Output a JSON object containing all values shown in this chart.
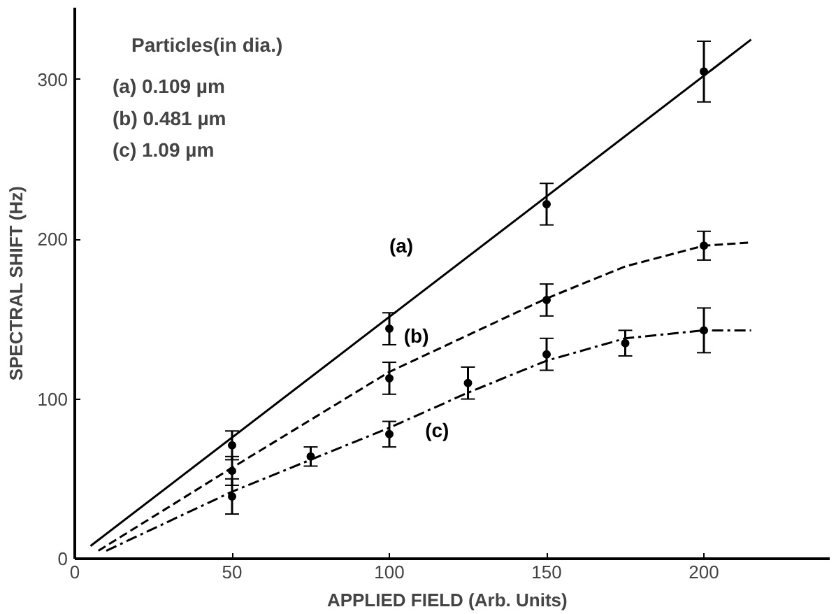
{
  "chart_data": {
    "type": "scatter",
    "xlabel": "APPLIED  FIELD  (Arb. Units)",
    "ylabel": "SPECTRAL SHIFT (Hz)",
    "xlim": [
      0,
      240
    ],
    "ylim": [
      0,
      345
    ],
    "xticks": [
      0,
      50,
      100,
      150,
      200
    ],
    "yticks": [
      0,
      100,
      200,
      300
    ],
    "grid": false,
    "marker": "circle",
    "series": [
      {
        "color": "#000000",
        "x": [
          50,
          100,
          150,
          200
        ],
        "values": [
          71,
          144,
          222,
          305
        ],
        "errors": [
          9,
          10,
          13,
          19
        ]
      },
      {
        "color": "#000000",
        "x": [
          50,
          100,
          150,
          200
        ],
        "values": [
          55,
          113,
          162,
          196
        ],
        "errors": [
          9,
          10,
          10,
          9
        ]
      },
      {
        "color": "#000000",
        "x": [
          50,
          75,
          100,
          125,
          150,
          175,
          200
        ],
        "values": [
          39,
          64,
          78,
          110,
          128,
          135,
          143
        ],
        "errors": [
          11,
          6,
          8,
          10,
          10,
          8,
          14
        ]
      },
      {
        "type": "line",
        "name": "(a)",
        "color": "#000000",
        "line_style": "solid",
        "marker": "none",
        "x": [
          5,
          215
        ],
        "values": [
          8,
          325
        ]
      },
      {
        "type": "line",
        "name": "(b)",
        "color": "#000000",
        "line_style": "dashed",
        "marker": "none",
        "x": [
          7.5,
          50,
          100,
          150,
          175,
          200,
          215
        ],
        "values": [
          5,
          57,
          117,
          163,
          183,
          196,
          198
        ]
      },
      {
        "type": "line",
        "name": "(c)",
        "color": "#000000",
        "line_style": "dashdot",
        "marker": "none",
        "x": [
          10,
          50,
          100,
          125,
          150,
          175,
          200,
          215
        ],
        "values": [
          5,
          42,
          82,
          104,
          124,
          138,
          143,
          143
        ]
      }
    ],
    "annotations": [
      "Particles(in dia.)",
      "(a)  0.109 µm",
      "(b)  0.481 µm",
      "(c)  1.09  µm"
    ]
  }
}
